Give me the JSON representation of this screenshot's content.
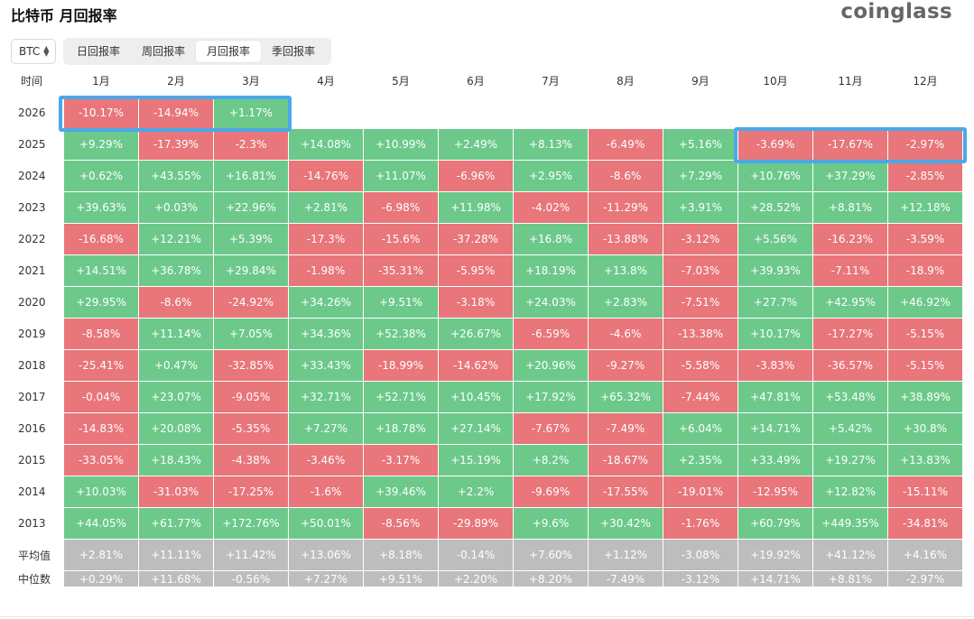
{
  "header": {
    "title": "比特币 月回报率",
    "logo": "coinglass"
  },
  "asset_select": {
    "value": "BTC"
  },
  "tabs": [
    {
      "label": "日回报率",
      "active": false
    },
    {
      "label": "周回报率",
      "active": false
    },
    {
      "label": "月回报率",
      "active": true
    },
    {
      "label": "季回报率",
      "active": false
    }
  ],
  "table": {
    "corner_label": "时间",
    "months": [
      "1月",
      "2月",
      "3月",
      "4月",
      "5月",
      "6月",
      "7月",
      "8月",
      "9月",
      "10月",
      "11月",
      "12月"
    ],
    "rows": [
      {
        "year": "2026",
        "values": [
          "-10.17%",
          "-14.94%",
          "+1.17%",
          "",
          "",
          "",
          "",
          "",
          "",
          "",
          "",
          ""
        ]
      },
      {
        "year": "2025",
        "values": [
          "+9.29%",
          "-17.39%",
          "-2.3%",
          "+14.08%",
          "+10.99%",
          "+2.49%",
          "+8.13%",
          "-6.49%",
          "+5.16%",
          "-3.69%",
          "-17.67%",
          "-2.97%"
        ]
      },
      {
        "year": "2024",
        "values": [
          "+0.62%",
          "+43.55%",
          "+16.81%",
          "-14.76%",
          "+11.07%",
          "-6.96%",
          "+2.95%",
          "-8.6%",
          "+7.29%",
          "+10.76%",
          "+37.29%",
          "-2.85%"
        ]
      },
      {
        "year": "2023",
        "values": [
          "+39.63%",
          "+0.03%",
          "+22.96%",
          "+2.81%",
          "-6.98%",
          "+11.98%",
          "-4.02%",
          "-11.29%",
          "+3.91%",
          "+28.52%",
          "+8.81%",
          "+12.18%"
        ]
      },
      {
        "year": "2022",
        "values": [
          "-16.68%",
          "+12.21%",
          "+5.39%",
          "-17.3%",
          "-15.6%",
          "-37.28%",
          "+16.8%",
          "-13.88%",
          "-3.12%",
          "+5.56%",
          "-16.23%",
          "-3.59%"
        ]
      },
      {
        "year": "2021",
        "values": [
          "+14.51%",
          "+36.78%",
          "+29.84%",
          "-1.98%",
          "-35.31%",
          "-5.95%",
          "+18.19%",
          "+13.8%",
          "-7.03%",
          "+39.93%",
          "-7.11%",
          "-18.9%"
        ]
      },
      {
        "year": "2020",
        "values": [
          "+29.95%",
          "-8.6%",
          "-24.92%",
          "+34.26%",
          "+9.51%",
          "-3.18%",
          "+24.03%",
          "+2.83%",
          "-7.51%",
          "+27.7%",
          "+42.95%",
          "+46.92%"
        ]
      },
      {
        "year": "2019",
        "values": [
          "-8.58%",
          "+11.14%",
          "+7.05%",
          "+34.36%",
          "+52.38%",
          "+26.67%",
          "-6.59%",
          "-4.6%",
          "-13.38%",
          "+10.17%",
          "-17.27%",
          "-5.15%"
        ]
      },
      {
        "year": "2018",
        "values": [
          "-25.41%",
          "+0.47%",
          "-32.85%",
          "+33.43%",
          "-18.99%",
          "-14.62%",
          "+20.96%",
          "-9.27%",
          "-5.58%",
          "-3.83%",
          "-36.57%",
          "-5.15%"
        ]
      },
      {
        "year": "2017",
        "values": [
          "-0.04%",
          "+23.07%",
          "-9.05%",
          "+32.71%",
          "+52.71%",
          "+10.45%",
          "+17.92%",
          "+65.32%",
          "-7.44%",
          "+47.81%",
          "+53.48%",
          "+38.89%"
        ]
      },
      {
        "year": "2016",
        "values": [
          "-14.83%",
          "+20.08%",
          "-5.35%",
          "+7.27%",
          "+18.78%",
          "+27.14%",
          "-7.67%",
          "-7.49%",
          "+6.04%",
          "+14.71%",
          "+5.42%",
          "+30.8%"
        ]
      },
      {
        "year": "2015",
        "values": [
          "-33.05%",
          "+18.43%",
          "-4.38%",
          "-3.46%",
          "-3.17%",
          "+15.19%",
          "+8.2%",
          "-18.67%",
          "+2.35%",
          "+33.49%",
          "+19.27%",
          "+13.83%"
        ]
      },
      {
        "year": "2014",
        "values": [
          "+10.03%",
          "-31.03%",
          "-17.25%",
          "-1.6%",
          "+39.46%",
          "+2.2%",
          "-9.69%",
          "-17.55%",
          "-19.01%",
          "-12.95%",
          "+12.82%",
          "-15.11%"
        ]
      },
      {
        "year": "2013",
        "values": [
          "+44.05%",
          "+61.77%",
          "+172.76%",
          "+50.01%",
          "-8.56%",
          "-29.89%",
          "+9.6%",
          "+30.42%",
          "-1.76%",
          "+60.79%",
          "+449.35%",
          "-34.81%"
        ]
      }
    ],
    "stats": [
      {
        "label": "平均值",
        "values": [
          "+2.81%",
          "+11.11%",
          "+11.42%",
          "+13.06%",
          "+8.18%",
          "-0.14%",
          "+7.60%",
          "+1.12%",
          "-3.08%",
          "+19.92%",
          "+41.12%",
          "+4.16%"
        ]
      },
      {
        "label": "中位数",
        "values": [
          "+0.29%",
          "+11.68%",
          "-0.56%",
          "+7.27%",
          "+9.51%",
          "+2.20%",
          "+8.20%",
          "-7.49%",
          "-3.12%",
          "+14.71%",
          "+8.81%",
          "-2.97%"
        ]
      }
    ]
  },
  "colors": {
    "positive": "#6cc98a",
    "negative": "#e8767a",
    "stat": "#bdbdbd",
    "highlight": "#4aa8e8"
  }
}
